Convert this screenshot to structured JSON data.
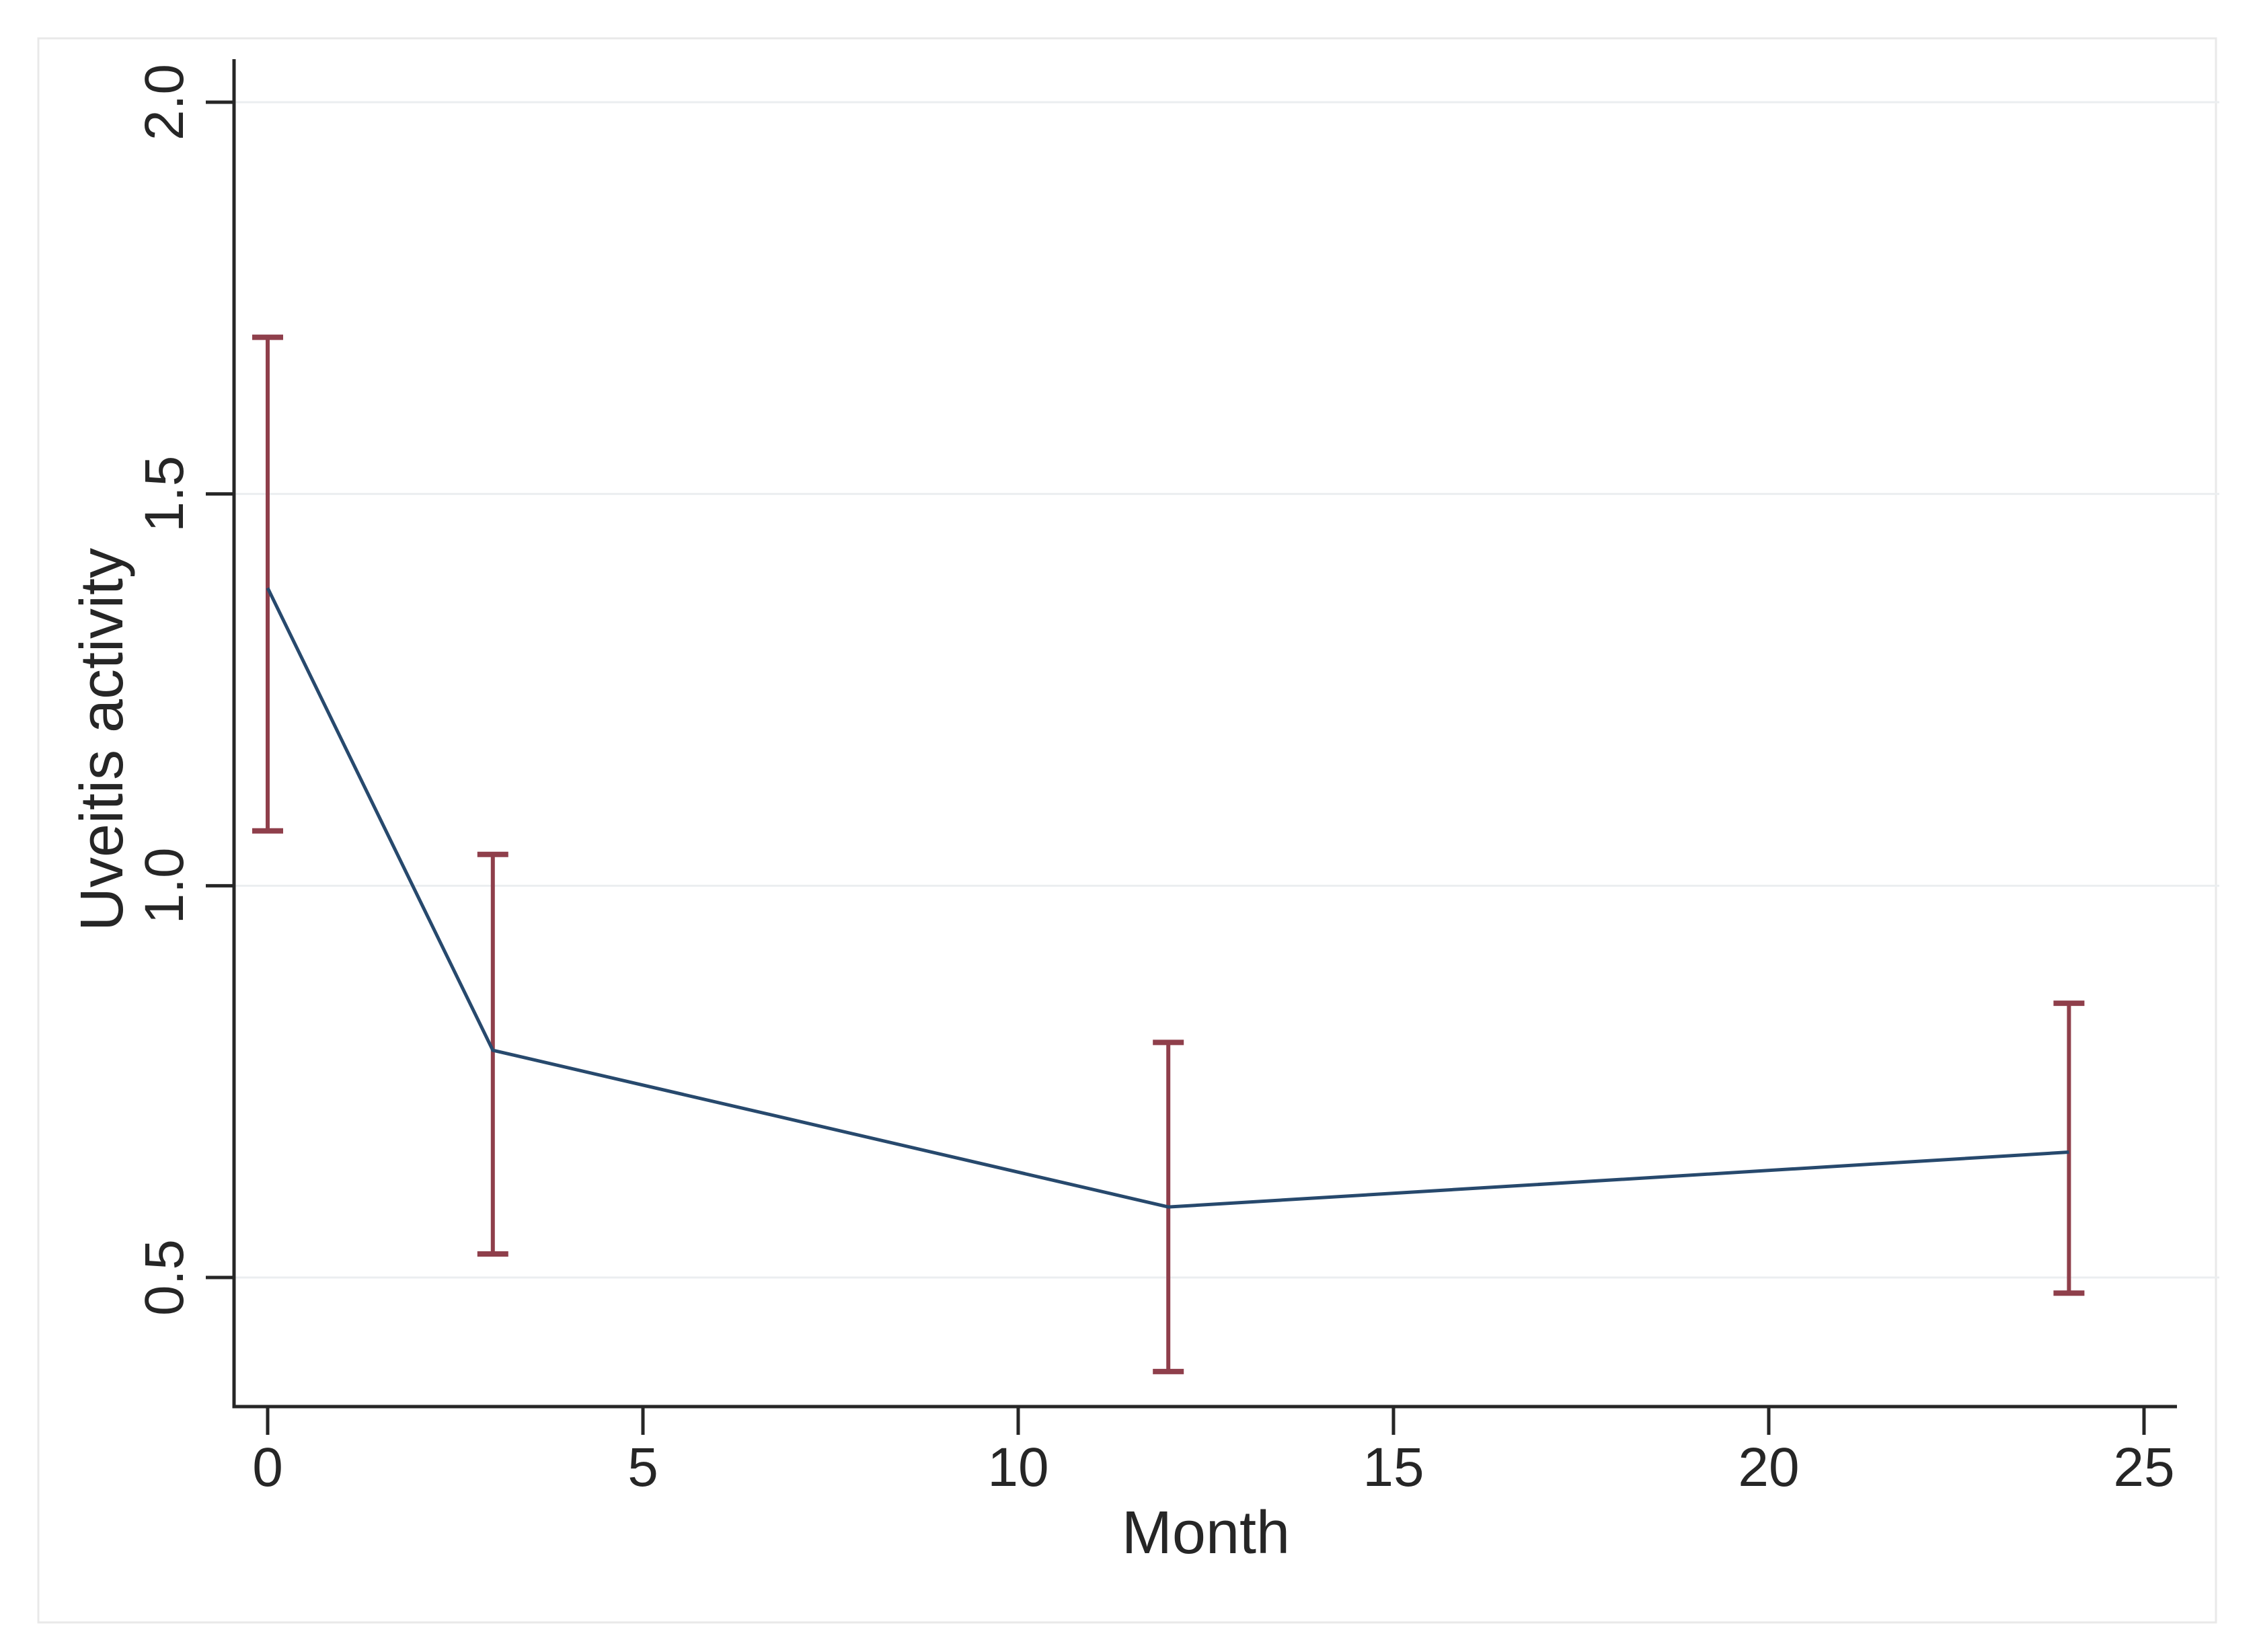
{
  "figure": {
    "background_color": "#ffffff",
    "border_color": "#e9e9e9"
  },
  "chart_data": {
    "type": "line",
    "title": "",
    "xlabel": "Month",
    "ylabel": "Uveitis activity",
    "x": [
      0,
      3,
      12,
      24
    ],
    "series": [
      {
        "name": "uveitis-activity-mean",
        "values": [
          1.38,
          0.79,
          0.59,
          0.66
        ],
        "ci_low": [
          1.07,
          0.53,
          0.38,
          0.48
        ],
        "ci_high": [
          1.7,
          1.04,
          0.8,
          0.85
        ]
      }
    ],
    "xtick_values": [
      0,
      5,
      10,
      15,
      20,
      25
    ],
    "xtick_labels": [
      "0",
      "5",
      "10",
      "15",
      "20",
      "25"
    ],
    "ytick_values": [
      0.5,
      1.0,
      1.5,
      2.0
    ],
    "ytick_labels": [
      "0.5",
      "1.0",
      "1.5",
      "2.0"
    ],
    "xlim": [
      -0.45,
      25.44
    ],
    "ylim": [
      0.335,
      2.055
    ],
    "grid": "horizontal",
    "legend": "none",
    "line_color": "#27496d",
    "error_bar_color": "#8f3f4b",
    "axis_color": "#262626",
    "gridline_color": "#ebeef0"
  }
}
